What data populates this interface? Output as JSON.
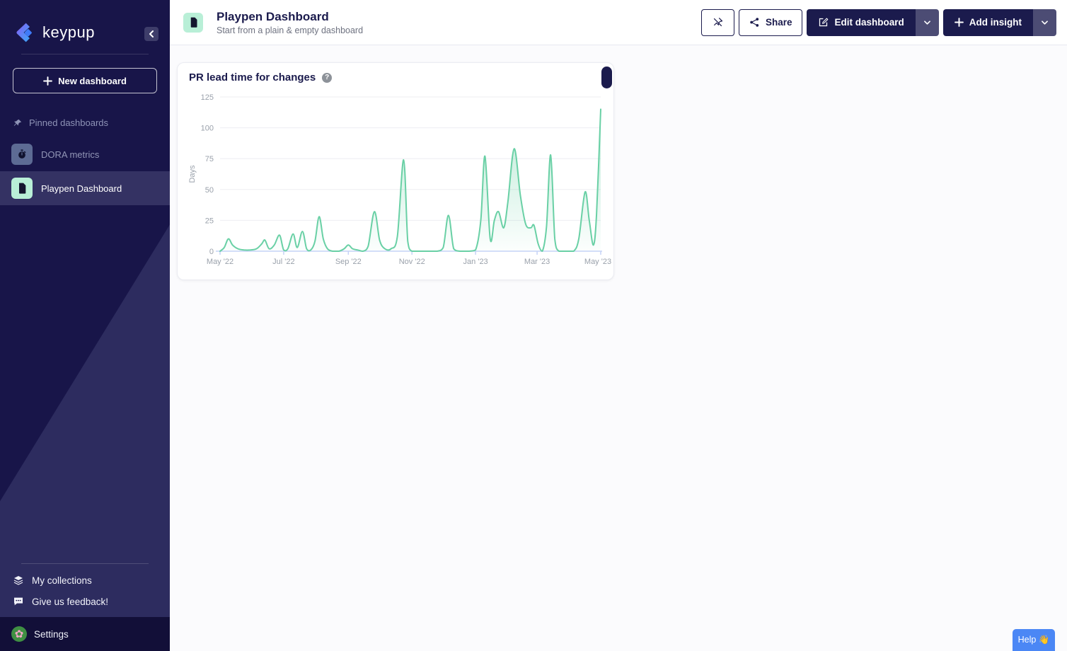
{
  "sidebar": {
    "logo_text": "keypup",
    "new_dashboard_label": "New dashboard",
    "pinned_section_label": "Pinned dashboards",
    "items": [
      {
        "label": "DORA metrics",
        "icon": "stopwatch-icon",
        "icon_bg": "#5d6b94",
        "active": false
      },
      {
        "label": "Playpen Dashboard",
        "icon": "document-icon",
        "icon_bg": "#b9efd7",
        "active": true
      }
    ],
    "footer_links": [
      {
        "label": "My collections",
        "icon": "layers-icon"
      },
      {
        "label": "Give us feedback!",
        "icon": "chat-icon"
      }
    ],
    "settings_label": "Settings"
  },
  "header": {
    "title": "Playpen Dashboard",
    "subtitle": "Start from a plain & empty dashboard",
    "share_label": "Share",
    "edit_label": "Edit dashboard",
    "add_label": "Add insight"
  },
  "card": {
    "title": "PR lead time for changes"
  },
  "help_button_label": "Help 👋",
  "colors": {
    "sidebar_bg": "#181549",
    "sidebar_diagonal": "#2d2c5f",
    "navy": "#1b1b4d",
    "mint": "#b9efd7",
    "line_green": "#69d0a5",
    "help_blue": "#4b87f5"
  },
  "chart_data": {
    "type": "area",
    "title": "PR lead time for changes",
    "ylabel": "Days",
    "ylim": [
      0,
      125
    ],
    "yticks": [
      0,
      25,
      50,
      75,
      100,
      125
    ],
    "grid": true,
    "legend": "none",
    "x_max_day": 365,
    "xtick_labels": [
      "May '22",
      "Jul '22",
      "Sep '22",
      "Nov '22",
      "Jan '23",
      "Mar '23",
      "May '23"
    ],
    "xtick_days": [
      0,
      61,
      123,
      184,
      245,
      304,
      365
    ],
    "line_color": "#69d0a5",
    "points": [
      [
        0,
        0
      ],
      [
        4,
        3
      ],
      [
        8,
        10
      ],
      [
        12,
        5
      ],
      [
        17,
        2
      ],
      [
        23,
        1
      ],
      [
        29,
        1
      ],
      [
        35,
        2
      ],
      [
        40,
        6
      ],
      [
        43,
        9
      ],
      [
        47,
        2
      ],
      [
        52,
        5
      ],
      [
        57,
        13
      ],
      [
        61,
        1
      ],
      [
        65,
        2
      ],
      [
        70,
        14
      ],
      [
        74,
        3
      ],
      [
        79,
        16
      ],
      [
        83,
        2
      ],
      [
        87,
        1
      ],
      [
        91,
        8
      ],
      [
        95,
        28
      ],
      [
        99,
        10
      ],
      [
        103,
        2
      ],
      [
        108,
        0
      ],
      [
        114,
        0
      ],
      [
        119,
        2
      ],
      [
        123,
        5
      ],
      [
        127,
        2
      ],
      [
        132,
        1
      ],
      [
        137,
        0
      ],
      [
        142,
        4
      ],
      [
        148,
        32
      ],
      [
        153,
        9
      ],
      [
        158,
        2
      ],
      [
        164,
        2
      ],
      [
        170,
        12
      ],
      [
        176,
        74
      ],
      [
        180,
        8
      ],
      [
        184,
        0
      ],
      [
        192,
        0
      ],
      [
        200,
        0
      ],
      [
        208,
        0
      ],
      [
        214,
        3
      ],
      [
        219,
        29
      ],
      [
        224,
        2
      ],
      [
        230,
        0
      ],
      [
        238,
        0
      ],
      [
        245,
        1
      ],
      [
        250,
        25
      ],
      [
        254,
        77
      ],
      [
        259,
        10
      ],
      [
        263,
        25
      ],
      [
        267,
        32
      ],
      [
        272,
        19
      ],
      [
        276,
        40
      ],
      [
        282,
        83
      ],
      [
        288,
        45
      ],
      [
        293,
        22
      ],
      [
        298,
        19
      ],
      [
        301,
        21
      ],
      [
        305,
        6
      ],
      [
        309,
        0
      ],
      [
        313,
        20
      ],
      [
        317,
        78
      ],
      [
        321,
        10
      ],
      [
        325,
        0
      ],
      [
        332,
        0
      ],
      [
        339,
        0
      ],
      [
        344,
        10
      ],
      [
        350,
        48
      ],
      [
        354,
        25
      ],
      [
        358,
        5
      ],
      [
        361,
        30
      ],
      [
        365,
        115
      ]
    ]
  }
}
